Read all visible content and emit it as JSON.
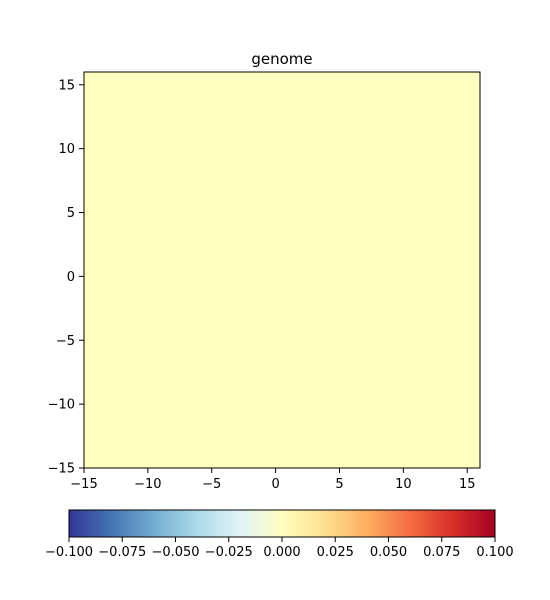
{
  "chart_data": {
    "type": "heatmap",
    "title": "genome",
    "xlabel": "",
    "ylabel": "",
    "xlim": [
      -15,
      16
    ],
    "ylim": [
      -15,
      16
    ],
    "x_ticks": [
      -15,
      -10,
      -5,
      0,
      5,
      10,
      15
    ],
    "y_ticks": [
      -15,
      -10,
      -5,
      0,
      5,
      10,
      15
    ],
    "x_tick_labels": [
      "−15",
      "−10",
      "−5",
      "0",
      "5",
      "10",
      "15"
    ],
    "y_tick_labels": [
      "−15",
      "−10",
      "−5",
      "0",
      "5",
      "10",
      "15"
    ],
    "grid": false,
    "values_uniform": 0.0,
    "fill_color": "#ffffbf",
    "colormap": "RdYlBu_r",
    "colorbar": {
      "orientation": "horizontal",
      "placement": "bottom",
      "vmin": -0.1,
      "vmax": 0.1,
      "ticks": [
        -0.1,
        -0.075,
        -0.05,
        -0.025,
        0.0,
        0.025,
        0.05,
        0.075,
        0.1
      ],
      "tick_labels": [
        "−0.100",
        "−0.075",
        "−0.050",
        "−0.025",
        "0.000",
        "0.025",
        "0.050",
        "0.075",
        "0.100"
      ],
      "colors": [
        "#313695",
        "#4575b4",
        "#74add1",
        "#abd9e9",
        "#e0f3f8",
        "#ffffbf",
        "#fee090",
        "#fdae61",
        "#f46d43",
        "#d73027",
        "#a50026"
      ]
    }
  }
}
